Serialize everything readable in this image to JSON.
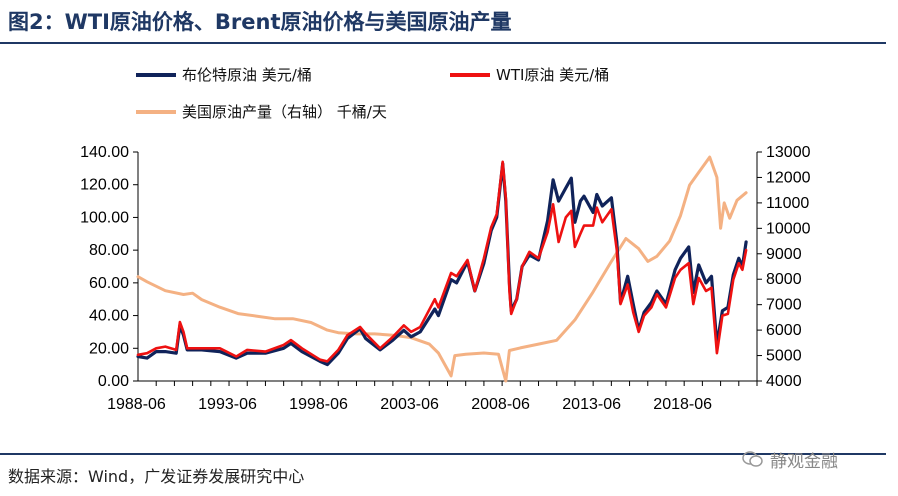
{
  "header": {
    "title": "图2：WTI原油价格、Brent原油价格与美国原油产量"
  },
  "footer": {
    "source": "数据来源：Wind，广发证券发展研究中心"
  },
  "watermark": {
    "text": "静观金融"
  },
  "colors": {
    "brent": "#10235a",
    "wti": "#ee1111",
    "production": "#f4b183",
    "rule": "#1f3864"
  },
  "chart_data": {
    "type": "line",
    "legend": {
      "placement": "top",
      "items": [
        "布伦特原油 美元/桶",
        "WTI原油 美元/桶",
        "美国原油产量（右轴） 千桶/天"
      ]
    },
    "x_ticks": [
      "1988-06",
      "1993-06",
      "1998-06",
      "2003-06",
      "2008-06",
      "2013-06",
      "2018-06"
    ],
    "x_range": [
      1988.5,
      2022.5
    ],
    "y_left": {
      "range": [
        0,
        140
      ],
      "ticks": [
        "0.00",
        "20.00",
        "40.00",
        "60.00",
        "80.00",
        "100.00",
        "120.00",
        "140.00"
      ]
    },
    "y_right": {
      "range": [
        4000,
        13000
      ],
      "ticks": [
        "4000",
        "5000",
        "6000",
        "7000",
        "8000",
        "9000",
        "10000",
        "11000",
        "12000",
        "13000"
      ]
    },
    "grid": false,
    "series": [
      {
        "name": "布伦特原油 美元/桶",
        "axis": "left",
        "points": [
          [
            1988.5,
            15
          ],
          [
            1989.0,
            14
          ],
          [
            1989.5,
            18
          ],
          [
            1990.0,
            18
          ],
          [
            1990.6,
            17
          ],
          [
            1990.8,
            34
          ],
          [
            1991.0,
            28
          ],
          [
            1991.2,
            19
          ],
          [
            1992.0,
            19
          ],
          [
            1993.0,
            18
          ],
          [
            1993.9,
            14
          ],
          [
            1994.5,
            17
          ],
          [
            1995.5,
            17
          ],
          [
            1996.5,
            20
          ],
          [
            1996.9,
            23
          ],
          [
            1997.5,
            18
          ],
          [
            1998.5,
            12
          ],
          [
            1998.9,
            10
          ],
          [
            1999.5,
            17
          ],
          [
            2000.0,
            26
          ],
          [
            2000.7,
            32
          ],
          [
            2001.0,
            26
          ],
          [
            2001.8,
            19
          ],
          [
            2002.5,
            25
          ],
          [
            2003.1,
            31
          ],
          [
            2003.5,
            27
          ],
          [
            2004.0,
            30
          ],
          [
            2004.8,
            44
          ],
          [
            2005.0,
            40
          ],
          [
            2005.7,
            62
          ],
          [
            2006.0,
            60
          ],
          [
            2006.6,
            73
          ],
          [
            2007.0,
            55
          ],
          [
            2007.5,
            72
          ],
          [
            2007.9,
            92
          ],
          [
            2008.2,
            100
          ],
          [
            2008.53,
            133
          ],
          [
            2008.7,
            110
          ],
          [
            2008.9,
            60
          ],
          [
            2009.0,
            43
          ],
          [
            2009.3,
            50
          ],
          [
            2009.6,
            70
          ],
          [
            2010.0,
            77
          ],
          [
            2010.5,
            74
          ],
          [
            2011.0,
            98
          ],
          [
            2011.3,
            123
          ],
          [
            2011.6,
            110
          ],
          [
            2012.0,
            118
          ],
          [
            2012.3,
            124
          ],
          [
            2012.5,
            97
          ],
          [
            2012.8,
            110
          ],
          [
            2013.0,
            113
          ],
          [
            2013.5,
            103
          ],
          [
            2013.7,
            114
          ],
          [
            2014.0,
            107
          ],
          [
            2014.5,
            112
          ],
          [
            2014.8,
            85
          ],
          [
            2015.0,
            48
          ],
          [
            2015.4,
            64
          ],
          [
            2015.7,
            47
          ],
          [
            2016.0,
            31
          ],
          [
            2016.3,
            42
          ],
          [
            2016.7,
            48
          ],
          [
            2017.0,
            55
          ],
          [
            2017.5,
            47
          ],
          [
            2018.0,
            68
          ],
          [
            2018.3,
            75
          ],
          [
            2018.75,
            82
          ],
          [
            2019.0,
            54
          ],
          [
            2019.3,
            71
          ],
          [
            2019.7,
            60
          ],
          [
            2020.0,
            64
          ],
          [
            2020.3,
            22
          ],
          [
            2020.6,
            43
          ],
          [
            2020.9,
            45
          ],
          [
            2021.2,
            65
          ],
          [
            2021.5,
            75
          ],
          [
            2021.7,
            70
          ],
          [
            2021.9,
            85
          ]
        ]
      },
      {
        "name": "WTI原油 美元/桶",
        "axis": "left",
        "points": [
          [
            1988.5,
            16
          ],
          [
            1989.0,
            17
          ],
          [
            1989.5,
            20
          ],
          [
            1990.0,
            21
          ],
          [
            1990.6,
            19
          ],
          [
            1990.8,
            36
          ],
          [
            1991.0,
            30
          ],
          [
            1991.2,
            20
          ],
          [
            1992.0,
            20
          ],
          [
            1993.0,
            20
          ],
          [
            1993.9,
            15
          ],
          [
            1994.5,
            19
          ],
          [
            1995.5,
            18
          ],
          [
            1996.5,
            22
          ],
          [
            1996.9,
            25
          ],
          [
            1997.5,
            20
          ],
          [
            1998.5,
            13
          ],
          [
            1998.9,
            12
          ],
          [
            1999.5,
            19
          ],
          [
            2000.0,
            28
          ],
          [
            2000.7,
            33
          ],
          [
            2001.0,
            29
          ],
          [
            2001.8,
            20
          ],
          [
            2002.5,
            27
          ],
          [
            2003.1,
            34
          ],
          [
            2003.5,
            30
          ],
          [
            2004.0,
            33
          ],
          [
            2004.8,
            50
          ],
          [
            2005.0,
            45
          ],
          [
            2005.7,
            66
          ],
          [
            2006.0,
            64
          ],
          [
            2006.6,
            74
          ],
          [
            2007.0,
            55
          ],
          [
            2007.5,
            75
          ],
          [
            2007.9,
            94
          ],
          [
            2008.2,
            102
          ],
          [
            2008.53,
            134
          ],
          [
            2008.7,
            112
          ],
          [
            2008.9,
            55
          ],
          [
            2009.0,
            41
          ],
          [
            2009.3,
            50
          ],
          [
            2009.6,
            70
          ],
          [
            2010.0,
            79
          ],
          [
            2010.5,
            75
          ],
          [
            2011.0,
            91
          ],
          [
            2011.3,
            108
          ],
          [
            2011.6,
            85
          ],
          [
            2012.0,
            100
          ],
          [
            2012.3,
            104
          ],
          [
            2012.5,
            82
          ],
          [
            2012.8,
            90
          ],
          [
            2013.0,
            95
          ],
          [
            2013.5,
            95
          ],
          [
            2013.7,
            106
          ],
          [
            2014.0,
            97
          ],
          [
            2014.5,
            105
          ],
          [
            2014.8,
            80
          ],
          [
            2015.0,
            47
          ],
          [
            2015.4,
            59
          ],
          [
            2015.7,
            42
          ],
          [
            2016.0,
            30
          ],
          [
            2016.3,
            40
          ],
          [
            2016.7,
            45
          ],
          [
            2017.0,
            53
          ],
          [
            2017.5,
            45
          ],
          [
            2018.0,
            63
          ],
          [
            2018.3,
            68
          ],
          [
            2018.75,
            72
          ],
          [
            2019.0,
            47
          ],
          [
            2019.3,
            63
          ],
          [
            2019.7,
            55
          ],
          [
            2020.0,
            57
          ],
          [
            2020.3,
            17
          ],
          [
            2020.6,
            40
          ],
          [
            2020.9,
            41
          ],
          [
            2021.2,
            62
          ],
          [
            2021.5,
            72
          ],
          [
            2021.7,
            68
          ],
          [
            2021.9,
            80
          ]
        ]
      },
      {
        "name": "美国原油产量（右轴） 千桶/天",
        "axis": "right",
        "points": [
          [
            1988.5,
            8100
          ],
          [
            1989.0,
            7900
          ],
          [
            1990.0,
            7550
          ],
          [
            1991.0,
            7400
          ],
          [
            1991.5,
            7450
          ],
          [
            1992.0,
            7200
          ],
          [
            1993.0,
            6900
          ],
          [
            1994.0,
            6650
          ],
          [
            1995.0,
            6550
          ],
          [
            1996.0,
            6450
          ],
          [
            1997.0,
            6450
          ],
          [
            1998.0,
            6300
          ],
          [
            1998.9,
            6000
          ],
          [
            1999.5,
            5900
          ],
          [
            2000.5,
            5850
          ],
          [
            2001.5,
            5850
          ],
          [
            2002.5,
            5800
          ],
          [
            2003.5,
            5700
          ],
          [
            2004.5,
            5450
          ],
          [
            2005.0,
            5100
          ],
          [
            2005.7,
            4200
          ],
          [
            2005.9,
            5000
          ],
          [
            2006.5,
            5050
          ],
          [
            2007.5,
            5100
          ],
          [
            2008.3,
            5050
          ],
          [
            2008.7,
            4000
          ],
          [
            2008.9,
            5200
          ],
          [
            2009.5,
            5300
          ],
          [
            2010.5,
            5450
          ],
          [
            2011.5,
            5600
          ],
          [
            2012.5,
            6400
          ],
          [
            2013.5,
            7500
          ],
          [
            2014.5,
            8700
          ],
          [
            2015.3,
            9600
          ],
          [
            2016.0,
            9200
          ],
          [
            2016.5,
            8700
          ],
          [
            2017.0,
            8900
          ],
          [
            2017.7,
            9500
          ],
          [
            2018.3,
            10500
          ],
          [
            2018.8,
            11700
          ],
          [
            2019.3,
            12200
          ],
          [
            2019.9,
            12800
          ],
          [
            2020.3,
            12000
          ],
          [
            2020.5,
            10000
          ],
          [
            2020.7,
            11000
          ],
          [
            2021.0,
            10400
          ],
          [
            2021.4,
            11100
          ],
          [
            2021.9,
            11400
          ]
        ]
      }
    ]
  }
}
